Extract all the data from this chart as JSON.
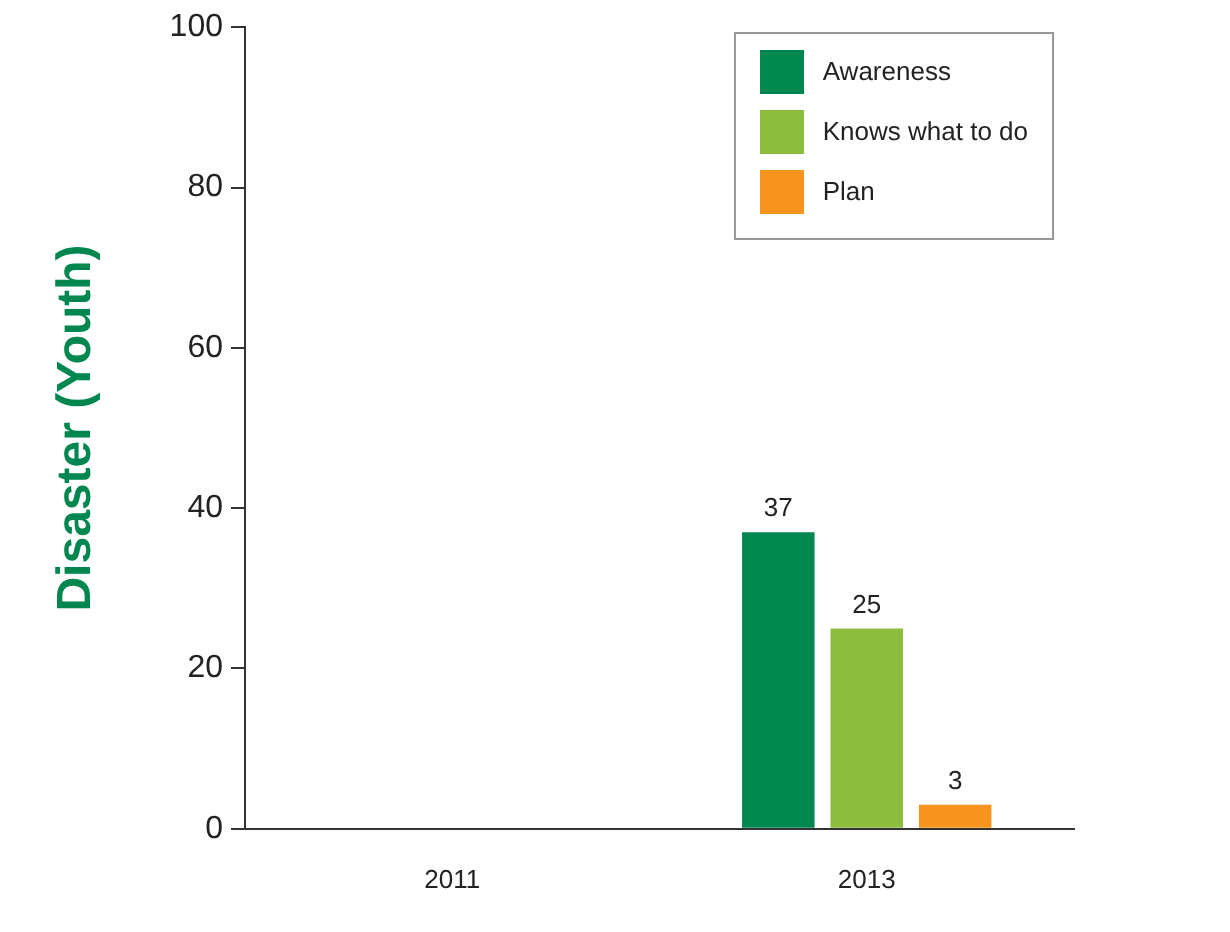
{
  "chart_data": {
    "type": "bar",
    "ylabel": "Disaster (Youth)",
    "categories": [
      "2011",
      "2013"
    ],
    "series": [
      {
        "name": "Awareness",
        "color": "#00874f",
        "values": [
          null,
          37
        ]
      },
      {
        "name": "Knows what to do",
        "color": "#8dbd3f",
        "values": [
          null,
          25
        ]
      },
      {
        "name": "Plan",
        "color": "#f7941d",
        "values": [
          null,
          3
        ]
      }
    ],
    "ylim": [
      0,
      100
    ],
    "yticks": [
      0,
      20,
      40,
      60,
      80,
      100
    ],
    "grid": false,
    "legend": "top right",
    "data_labels": true
  }
}
